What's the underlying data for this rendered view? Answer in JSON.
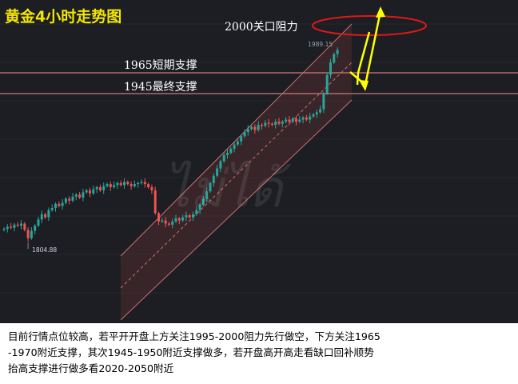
{
  "title": "黄金4小时走势图",
  "resistance": {
    "label": "2000关口阻力",
    "value": 2000
  },
  "support_short": {
    "label": "1965短期支撑",
    "value": 1965
  },
  "support_final": {
    "label": "1945最终支撑",
    "value": 1945
  },
  "watermark": "ไม่ได้",
  "price_high_label": "1989.15",
  "price_low_label": "1804.88",
  "commentary": {
    "line1": "目前行情点位较高，若平开开盘上方关注1995-2000阻力先行做空，下方关注1965",
    "line2": "-1970附近支撑，其次1945-1950附近支撑做多，若开盘高开高走看缺口回补顺势",
    "line3": "抬高支撑进行做多看2020-2050附近"
  },
  "colors": {
    "background": "#1c1e24",
    "title": "#f2e600",
    "up_candle": "#26a69a",
    "down_candle": "#ef5350",
    "channel_fill": "rgba(239,83,80,0.13)",
    "channel_line": "#c9706e",
    "level_line": "#d07a7a",
    "ellipse": "#e01818",
    "arrow": "#ffff00"
  },
  "chart_data": {
    "type": "candlestick",
    "title": "黄金4小时走势图",
    "levels": [
      {
        "name": "2000关口阻力",
        "value": 2000
      },
      {
        "name": "1965短期支撑",
        "value": 1965
      },
      {
        "name": "1945最终支撑",
        "value": 1945
      }
    ],
    "extremes": {
      "high": 1989.15,
      "low": 1804.88
    },
    "closes": [
      1815,
      1817,
      1816,
      1819,
      1818,
      1820,
      1814,
      1806,
      1813,
      1818,
      1824,
      1829,
      1826,
      1833,
      1835,
      1839,
      1837,
      1840,
      1844,
      1842,
      1846,
      1848,
      1845,
      1850,
      1852,
      1849,
      1853,
      1855,
      1852,
      1856,
      1858,
      1855,
      1857,
      1859,
      1857,
      1860,
      1858,
      1856,
      1858,
      1859,
      1860,
      1858,
      1855,
      1852,
      1830,
      1822,
      1823,
      1820,
      1819,
      1822,
      1825,
      1823,
      1826,
      1828,
      1826,
      1829,
      1833,
      1838,
      1844,
      1851,
      1859,
      1866,
      1873,
      1880,
      1886,
      1888,
      1892,
      1896,
      1899,
      1904,
      1908,
      1911,
      1913,
      1910,
      1915,
      1914,
      1917,
      1916,
      1915,
      1918,
      1916,
      1918,
      1920,
      1918,
      1921,
      1918,
      1920,
      1922,
      1920,
      1923,
      1925,
      1927,
      1930,
      1945,
      1963,
      1975,
      1983,
      1987
    ]
  }
}
